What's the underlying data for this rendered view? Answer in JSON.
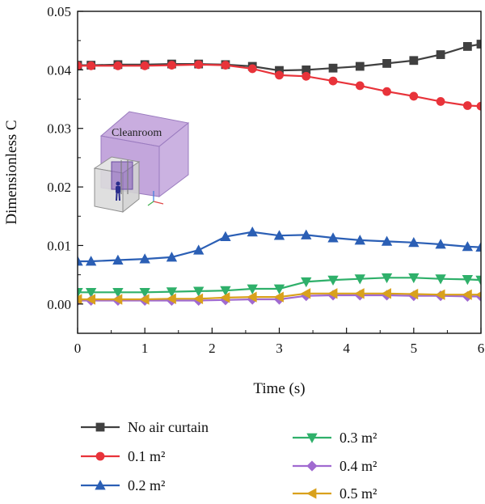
{
  "chart_data": {
    "type": "line",
    "xlabel": "Time (s)",
    "ylabel": "Dimensionless C",
    "xlim": [
      0,
      6
    ],
    "ylim": [
      -0.005,
      0.05
    ],
    "xticks": [
      "0",
      "1",
      "2",
      "3",
      "4",
      "5",
      "6"
    ],
    "yticks": [
      "0.00",
      "0.01",
      "0.02",
      "0.03",
      "0.04",
      "0.05"
    ],
    "grid": false,
    "legend_position": "bottom",
    "inset_label": "Cleanroom",
    "x": [
      0,
      0.2,
      0.6,
      1.0,
      1.4,
      1.8,
      2.2,
      2.6,
      3.0,
      3.4,
      3.8,
      4.2,
      4.6,
      5.0,
      5.4,
      5.8,
      6.0
    ],
    "series": [
      {
        "name": "No air curtain",
        "color": "#404040",
        "marker": "square",
        "values": [
          0.0408,
          0.0408,
          0.0409,
          0.0409,
          0.041,
          0.041,
          0.0409,
          0.0406,
          0.0399,
          0.04,
          0.0403,
          0.0406,
          0.0411,
          0.0416,
          0.0426,
          0.044,
          0.0444
        ]
      },
      {
        "name": "0.1 m²",
        "color": "#e8333a",
        "marker": "circle",
        "values": [
          0.0407,
          0.0407,
          0.0407,
          0.0407,
          0.0408,
          0.0409,
          0.0408,
          0.0402,
          0.0391,
          0.0389,
          0.0381,
          0.0373,
          0.0363,
          0.0355,
          0.0346,
          0.0339,
          0.0338
        ]
      },
      {
        "name": "0.2 m²",
        "color": "#2b5fb5",
        "marker": "triangle-up",
        "values": [
          0.0073,
          0.0073,
          0.0075,
          0.0077,
          0.008,
          0.0092,
          0.0115,
          0.0123,
          0.0117,
          0.0118,
          0.0113,
          0.0109,
          0.0107,
          0.0105,
          0.0102,
          0.0098,
          0.0097
        ]
      },
      {
        "name": "0.3 m²",
        "color": "#2fb06a",
        "marker": "triangle-down",
        "values": [
          0.002,
          0.002,
          0.002,
          0.002,
          0.0021,
          0.0022,
          0.0023,
          0.0026,
          0.0026,
          0.0038,
          0.0041,
          0.0043,
          0.0045,
          0.0045,
          0.0043,
          0.0042,
          0.0041
        ]
      },
      {
        "name": "0.4 m²",
        "color": "#a06ad0",
        "marker": "diamond",
        "values": [
          0.0006,
          0.0006,
          0.0006,
          0.0006,
          0.0006,
          0.0006,
          0.0007,
          0.0008,
          0.0008,
          0.0014,
          0.0015,
          0.0015,
          0.0015,
          0.0014,
          0.0014,
          0.0013,
          0.0013
        ]
      },
      {
        "name": "0.5 m²",
        "color": "#d9a11c",
        "marker": "triangle-left",
        "values": [
          0.0008,
          0.0008,
          0.0008,
          0.0008,
          0.0009,
          0.0009,
          0.0011,
          0.0012,
          0.0012,
          0.0018,
          0.0018,
          0.0018,
          0.0018,
          0.0017,
          0.0016,
          0.0016,
          0.0016
        ]
      }
    ]
  }
}
